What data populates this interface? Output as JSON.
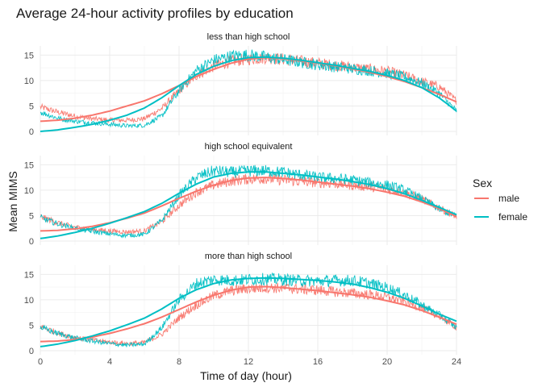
{
  "chart_data": {
    "type": "line",
    "title": "Average 24-hour activity profiles by education",
    "xlabel": "Time of day (hour)",
    "ylabel": "Mean MIMS",
    "xlim": [
      0,
      24
    ],
    "ylim": [
      0,
      16
    ],
    "x_ticks": [
      0,
      4,
      8,
      12,
      16,
      20,
      24
    ],
    "y_ticks": [
      0,
      5,
      10,
      15
    ],
    "grid": true,
    "legend": {
      "title": "Sex",
      "position": "right",
      "entries": [
        {
          "name": "male",
          "color": "#F8766D"
        },
        {
          "name": "female",
          "color": "#00BFC4"
        }
      ]
    },
    "x": [
      0,
      1,
      2,
      3,
      4,
      5,
      6,
      7,
      8,
      9,
      10,
      11,
      12,
      13,
      14,
      15,
      16,
      17,
      18,
      19,
      20,
      21,
      22,
      23,
      24
    ],
    "panels": [
      {
        "label": "less than high school",
        "series": [
          {
            "name": "male",
            "values": [
              4.8,
              3.8,
              3.0,
              2.5,
              2.2,
              2.2,
              2.5,
              4.5,
              8.0,
              11.0,
              12.8,
              13.8,
              14.2,
              14.5,
              14.2,
              13.8,
              13.4,
              13.0,
              12.6,
              12.2,
              11.8,
              11.0,
              9.8,
              8.8,
              6.0
            ],
            "smooth": [
              2.0,
              2.2,
              2.6,
              3.2,
              4.0,
              5.0,
              6.0,
              7.4,
              9.0,
              10.8,
              12.2,
              13.4,
              14.2,
              14.5,
              14.3,
              13.9,
              13.4,
              12.9,
              12.3,
              11.6,
              10.8,
              9.8,
              8.6,
              7.3,
              5.8
            ]
          },
          {
            "name": "female",
            "values": [
              3.8,
              2.6,
              2.0,
              1.7,
              1.4,
              1.1,
              1.2,
              3.0,
              8.0,
              12.0,
              14.0,
              14.8,
              15.0,
              14.6,
              14.1,
              13.6,
              13.1,
              12.7,
              12.3,
              11.9,
              11.4,
              10.7,
              9.5,
              7.5,
              4.0
            ],
            "smooth": [
              0.0,
              0.3,
              0.8,
              1.4,
              2.2,
              3.2,
              4.6,
              6.6,
              9.0,
              11.2,
              12.8,
              13.9,
              14.5,
              14.6,
              14.4,
              14.0,
              13.5,
              13.0,
              12.4,
              11.8,
              11.0,
              10.0,
              8.6,
              6.6,
              4.0
            ]
          }
        ]
      },
      {
        "label": "high school equivalent",
        "series": [
          {
            "name": "male",
            "values": [
              4.8,
              3.6,
              2.7,
              2.3,
              2.0,
              1.8,
              2.0,
              3.8,
              7.0,
              9.6,
              11.0,
              11.8,
              12.2,
              12.3,
              12.0,
              11.7,
              11.5,
              11.3,
              11.0,
              10.7,
              10.2,
              9.5,
              8.3,
              6.5,
              4.8
            ],
            "smooth": [
              2.0,
              2.1,
              2.4,
              2.9,
              3.6,
              4.5,
              5.5,
              6.9,
              8.4,
              9.8,
              11.0,
              11.9,
              12.4,
              12.5,
              12.3,
              12.0,
              11.6,
              11.2,
              10.8,
              10.3,
              9.6,
              8.8,
              7.7,
              6.4,
              4.8
            ]
          },
          {
            "name": "female",
            "values": [
              4.6,
              3.4,
              2.5,
              1.9,
              1.4,
              1.1,
              1.3,
              4.0,
              9.0,
              12.5,
              13.8,
              13.5,
              13.8,
              13.8,
              13.5,
              13.0,
              12.5,
              12.3,
              12.0,
              11.5,
              11.0,
              10.0,
              8.3,
              6.3,
              4.8
            ],
            "smooth": [
              0.5,
              1.0,
              1.7,
              2.5,
              3.5,
              4.6,
              5.8,
              7.4,
              9.4,
              11.2,
              12.6,
              13.3,
              13.6,
              13.6,
              13.3,
              13.0,
              12.6,
              12.2,
              11.7,
              11.1,
              10.3,
              9.3,
              8.0,
              6.6,
              5.2
            ]
          }
        ]
      },
      {
        "label": "more than high school",
        "series": [
          {
            "name": "male",
            "values": [
              4.8,
              3.5,
              2.6,
              2.1,
              1.7,
              1.4,
              1.6,
              3.2,
              6.5,
              9.0,
              10.8,
              11.8,
              12.2,
              12.4,
              12.3,
              12.1,
              11.9,
              11.6,
              11.3,
              11.0,
              10.5,
              9.7,
              8.4,
              6.8,
              4.6
            ],
            "smooth": [
              1.8,
              1.9,
              2.2,
              2.7,
              3.4,
              4.3,
              5.3,
              6.6,
              8.1,
              9.6,
              10.9,
              11.9,
              12.5,
              12.6,
              12.4,
              12.1,
              11.8,
              11.4,
              11.0,
              10.5,
              9.8,
              9.0,
              7.9,
              6.6,
              5.2
            ]
          },
          {
            "name": "female",
            "values": [
              4.6,
              3.4,
              2.5,
              1.9,
              1.4,
              1.1,
              1.3,
              4.5,
              10.0,
              13.2,
              14.0,
              13.8,
              14.0,
              14.1,
              14.0,
              13.8,
              13.7,
              13.8,
              13.8,
              13.2,
              12.4,
              11.0,
              9.0,
              7.0,
              4.6
            ],
            "smooth": [
              0.8,
              1.3,
              2.0,
              2.9,
              3.9,
              5.1,
              6.4,
              8.2,
              10.3,
              12.0,
              13.2,
              13.9,
              14.2,
              14.3,
              14.2,
              14.0,
              13.8,
              13.5,
              13.1,
              12.4,
              11.5,
              10.3,
              8.8,
              7.2,
              5.8
            ]
          }
        ]
      }
    ]
  }
}
